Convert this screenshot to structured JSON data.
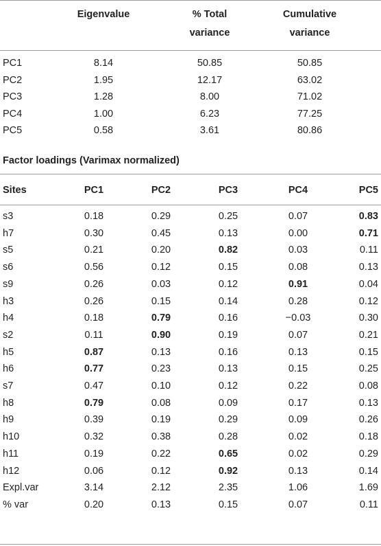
{
  "variance_table": {
    "headers": [
      {
        "line1": "Eigenvalue",
        "line2": ""
      },
      {
        "line1": "% Total",
        "line2": "variance"
      },
      {
        "line1": "Cumulative",
        "line2": "variance"
      }
    ],
    "rows": [
      {
        "label": "PC1",
        "values": [
          "8.14",
          "50.85",
          "50.85"
        ]
      },
      {
        "label": "PC2",
        "values": [
          "1.95",
          "12.17",
          "63.02"
        ]
      },
      {
        "label": "PC3",
        "values": [
          "1.28",
          "8.00",
          "71.02"
        ]
      },
      {
        "label": "PC4",
        "values": [
          "1.00",
          "6.23",
          "77.25"
        ]
      },
      {
        "label": "PC5",
        "values": [
          "0.58",
          "3.61",
          "80.86"
        ]
      }
    ]
  },
  "loadings_title": "Factor loadings (Varimax normalized)",
  "loadings_table": {
    "headers": [
      "Sites",
      "PC1",
      "PC2",
      "PC3",
      "PC4",
      "PC5"
    ],
    "rows": [
      {
        "site": "s3",
        "values": [
          "0.18",
          "0.29",
          "0.25",
          "0.07",
          "0.83"
        ],
        "bold": [
          4
        ]
      },
      {
        "site": "h7",
        "values": [
          "0.30",
          "0.45",
          "0.13",
          "0.00",
          "0.71"
        ],
        "bold": [
          4
        ]
      },
      {
        "site": "s5",
        "values": [
          "0.21",
          "0.20",
          "0.82",
          "0.03",
          "0.11"
        ],
        "bold": [
          2
        ]
      },
      {
        "site": "s6",
        "values": [
          "0.56",
          "0.12",
          "0.15",
          "0.08",
          "0.13"
        ],
        "bold": []
      },
      {
        "site": "s9",
        "values": [
          "0.26",
          "0.03",
          "0.12",
          "0.91",
          "0.04"
        ],
        "bold": [
          3
        ]
      },
      {
        "site": "h3",
        "values": [
          "0.26",
          "0.15",
          "0.14",
          "0.28",
          "0.12"
        ],
        "bold": []
      },
      {
        "site": "h4",
        "values": [
          "0.18",
          "0.79",
          "0.16",
          "−0.03",
          "0.30"
        ],
        "bold": [
          1
        ]
      },
      {
        "site": "s2",
        "values": [
          "0.11",
          "0.90",
          "0.19",
          "0.07",
          "0.21"
        ],
        "bold": [
          1
        ]
      },
      {
        "site": "h5",
        "values": [
          "0.87",
          "0.13",
          "0.16",
          "0.13",
          "0.15"
        ],
        "bold": [
          0
        ]
      },
      {
        "site": "h6",
        "values": [
          "0.77",
          "0.23",
          "0.13",
          "0.15",
          "0.25"
        ],
        "bold": [
          0
        ]
      },
      {
        "site": "s7",
        "values": [
          "0.47",
          "0.10",
          "0.12",
          "0.22",
          "0.08"
        ],
        "bold": []
      },
      {
        "site": "h8",
        "values": [
          "0.79",
          "0.08",
          "0.09",
          "0.17",
          "0.13"
        ],
        "bold": [
          0
        ]
      },
      {
        "site": "h9",
        "values": [
          "0.39",
          "0.19",
          "0.29",
          "0.09",
          "0.26"
        ],
        "bold": []
      },
      {
        "site": "h10",
        "values": [
          "0.32",
          "0.38",
          "0.28",
          "0.02",
          "0.18"
        ],
        "bold": []
      },
      {
        "site": "h11",
        "values": [
          "0.19",
          "0.22",
          "0.65",
          "0.02",
          "0.29"
        ],
        "bold": [
          2
        ]
      },
      {
        "site": "h12",
        "values": [
          "0.06",
          "0.12",
          "0.92",
          "0.13",
          "0.14"
        ],
        "bold": [
          2
        ]
      },
      {
        "site": "Expl.var",
        "values": [
          "3.14",
          "2.12",
          "2.35",
          "1.06",
          "1.69"
        ],
        "bold": []
      },
      {
        "site": "% var",
        "values": [
          "0.20",
          "0.13",
          "0.15",
          "0.07",
          "0.11"
        ],
        "bold": []
      }
    ]
  }
}
